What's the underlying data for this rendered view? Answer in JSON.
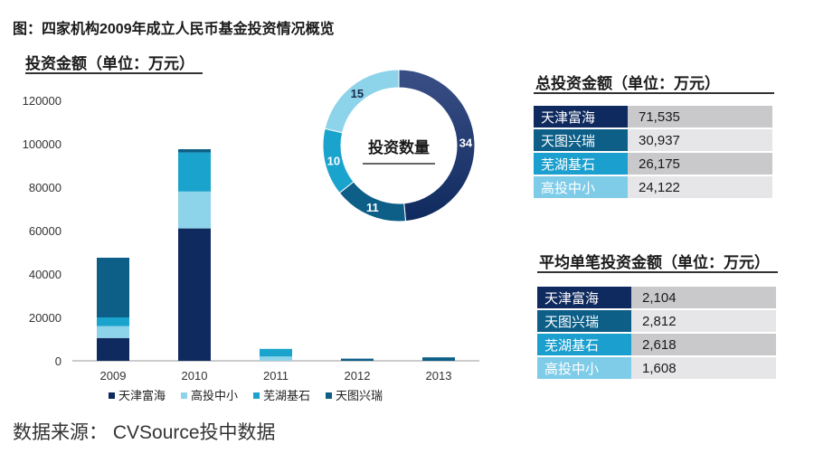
{
  "figure_title": "图：四家机构2009年成立人民币基金投资情况概览",
  "source": "数据来源： CVSource投中数据",
  "colors": {
    "tianjin": "#0f2a5e",
    "gaotou": "#8dd3ea",
    "wuhu": "#1aa3cc",
    "tiantu": "#0d5f88",
    "wuhu_cell": "#1a9fce",
    "gaotou_cell": "#7fcce8",
    "value_dark": "#c9c9cb",
    "value_light": "#e6e6e8"
  },
  "chart_data": [
    {
      "type": "bar",
      "stacked": true,
      "title": "投资金额（单位：万元）",
      "categories": [
        "2009",
        "2010",
        "2011",
        "2012",
        "2013"
      ],
      "ylim": [
        0,
        120000
      ],
      "yticks": [
        0,
        20000,
        40000,
        60000,
        80000,
        100000,
        120000
      ],
      "series": [
        {
          "name": "天津富海",
          "values": [
            10500,
            61000,
            0,
            0,
            0
          ]
        },
        {
          "name": "高投中小",
          "values": [
            5500,
            17000,
            2000,
            0,
            0
          ]
        },
        {
          "name": "芜湖基石",
          "values": [
            4000,
            18000,
            3500,
            0,
            0
          ]
        },
        {
          "name": "天图兴瑞",
          "values": [
            27500,
            1500,
            0,
            1000,
            1600
          ]
        }
      ],
      "legend": "bottom"
    },
    {
      "type": "pie",
      "donut": true,
      "center_label": "投资数量",
      "slices": [
        {
          "name": "天津富海",
          "value": 34
        },
        {
          "name": "天图兴瑞",
          "value": 11
        },
        {
          "name": "芜湖基石",
          "value": 10
        },
        {
          "name": "高投中小",
          "value": 15
        }
      ]
    },
    {
      "type": "table",
      "title": "总投资金额（单位：万元）",
      "rows": [
        {
          "name": "天津富海",
          "value": "71,535"
        },
        {
          "name": "天图兴瑞",
          "value": "30,937"
        },
        {
          "name": "芜湖基石",
          "value": "26,175"
        },
        {
          "name": "高投中小",
          "value": "24,122"
        }
      ]
    },
    {
      "type": "table",
      "title": "平均单笔投资金额（单位：万元）",
      "rows": [
        {
          "name": "天津富海",
          "value": "2,104"
        },
        {
          "name": "天图兴瑞",
          "value": "2,812"
        },
        {
          "name": "芜湖基石",
          "value": "2,618"
        },
        {
          "name": "高投中小",
          "value": "1,608"
        }
      ]
    }
  ]
}
